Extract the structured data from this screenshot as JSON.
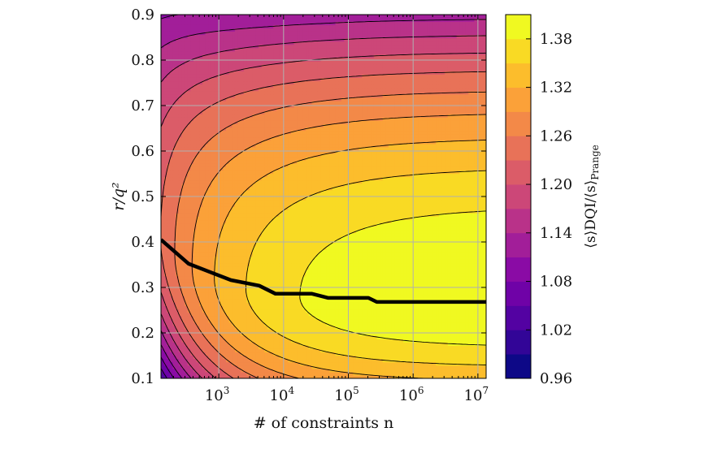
{
  "chart_data": {
    "type": "heatmap",
    "subtype": "filled-contour",
    "title": "",
    "xlabel": "# of constraints n",
    "ylabel": "r/q²",
    "xscale": "log",
    "xlim": [
      128,
      13400000
    ],
    "ylim": [
      0.1,
      0.9
    ],
    "xticks": [
      1000,
      10000,
      100000,
      1000000,
      10000000
    ],
    "xtick_labels": [
      {
        "base": "10",
        "exp": "3"
      },
      {
        "base": "10",
        "exp": "4"
      },
      {
        "base": "10",
        "exp": "5"
      },
      {
        "base": "10",
        "exp": "6"
      },
      {
        "base": "10",
        "exp": "7"
      }
    ],
    "yticks": [
      0.1,
      0.2,
      0.3,
      0.4,
      0.5,
      0.6,
      0.7,
      0.8,
      0.9
    ],
    "ytick_labels": [
      "0.1",
      "0.2",
      "0.3",
      "0.4",
      "0.5",
      "0.6",
      "0.7",
      "0.8",
      "0.9"
    ],
    "grid": true,
    "colormap": "plasma",
    "colorbar": {
      "label_main": "⟨s⟩DQI/⟨s⟩",
      "label_sub": "Prange",
      "range": [
        0.96,
        1.41
      ],
      "level_step": 0.03,
      "ticks": [
        0.96,
        1.02,
        1.08,
        1.14,
        1.2,
        1.26,
        1.32,
        1.38
      ],
      "tick_labels": [
        "0.96",
        "1.02",
        "1.08",
        "1.14",
        "1.20",
        "1.26",
        "1.32",
        "1.38"
      ]
    },
    "optimal_curve": {
      "n": [
        128,
        343,
        1540,
        4200,
        7500,
        11500,
        27500,
        49000,
        204000,
        275000,
        13400000
      ],
      "r": [
        0.405,
        0.352,
        0.316,
        0.304,
        0.286,
        0.286,
        0.286,
        0.277,
        0.277,
        0.268,
        0.268
      ]
    }
  }
}
